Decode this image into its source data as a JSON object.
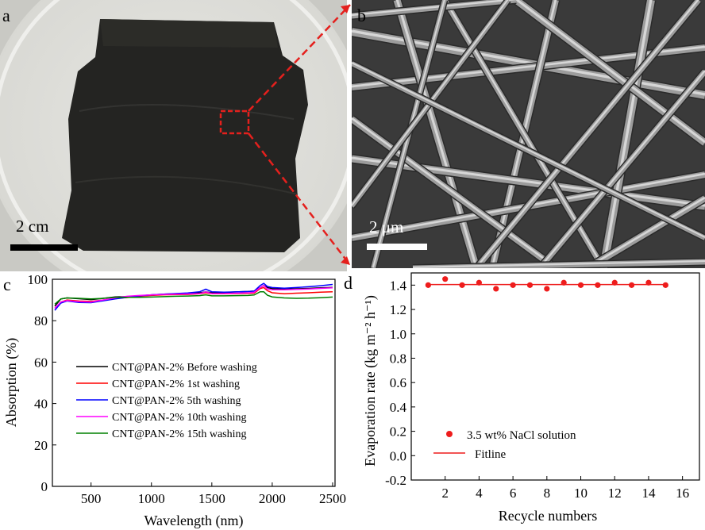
{
  "panels": {
    "a": {
      "label": "a",
      "scale_label": "2 cm"
    },
    "b": {
      "label": "b",
      "scale_label": "2 μm"
    },
    "c": {
      "label": "c"
    },
    "d": {
      "label": "d"
    }
  },
  "colors": {
    "zoom_box": "#e4201d",
    "before": "#000000",
    "first": "#ff0000",
    "fifth": "#0000ff",
    "tenth": "#ff00ff",
    "fifteenth": "#008000",
    "points": "#ee1c1c",
    "fitline": "#ee1c1c"
  },
  "chart_data": [
    {
      "type": "line",
      "panel": "c",
      "xlabel": "Wavelength (nm)",
      "ylabel": "Absorption (%)",
      "xlim": [
        180,
        2520
      ],
      "ylim": [
        0,
        100
      ],
      "xticks": [
        500,
        1000,
        1500,
        2000,
        2500
      ],
      "yticks": [
        0,
        20,
        40,
        60,
        80,
        100
      ],
      "legend_position": "center-left",
      "x": [
        200,
        250,
        300,
        400,
        500,
        600,
        700,
        800,
        900,
        1000,
        1100,
        1200,
        1300,
        1400,
        1450,
        1500,
        1600,
        1700,
        1800,
        1850,
        1900,
        1930,
        1960,
        2000,
        2100,
        2200,
        2300,
        2400,
        2500
      ],
      "series": [
        {
          "name": "CNT@PAN-2% Before washing",
          "color_key": "before",
          "values": [
            87,
            90.5,
            91,
            90.6,
            90.2,
            90.8,
            91.5,
            91.6,
            92,
            92.5,
            92.8,
            93,
            93.2,
            93.5,
            93.9,
            93.5,
            93.6,
            93.9,
            94.1,
            94.3,
            96,
            97,
            96,
            95.5,
            95.2,
            95.4,
            95.6,
            95.9,
            96.1
          ]
        },
        {
          "name": "CNT@PAN-2% 1st washing",
          "color_key": "first",
          "values": [
            86,
            89,
            90,
            89.5,
            89.3,
            90,
            90.8,
            91.2,
            91.8,
            92.2,
            92.5,
            92.6,
            92.7,
            93,
            93.5,
            93,
            93,
            93.1,
            93.2,
            93.3,
            95.5,
            96,
            94.5,
            93.5,
            93,
            93.3,
            93.5,
            93.8,
            94
          ]
        },
        {
          "name": "CNT@PAN-2% 5th washing",
          "color_key": "fifth",
          "values": [
            85,
            88.5,
            89.5,
            88.8,
            88.7,
            89.6,
            90.5,
            91.3,
            92,
            92.5,
            92.8,
            93.1,
            93.4,
            94,
            95.2,
            94,
            93.8,
            93.9,
            94.1,
            94.3,
            97,
            98,
            96.5,
            96,
            95.7,
            96,
            96.4,
            96.9,
            97.5
          ]
        },
        {
          "name": "CNT@PAN-2% 10th washing",
          "color_key": "tenth",
          "values": [
            86,
            89,
            89.7,
            89.2,
            89,
            90,
            91,
            91.8,
            92.2,
            92.5,
            92.7,
            92.8,
            92.9,
            93.1,
            93.9,
            93.1,
            93.1,
            93.3,
            93.5,
            93.7,
            96,
            97,
            95.3,
            95,
            94.9,
            95.1,
            95.3,
            95.6,
            95.9
          ]
        },
        {
          "name": "CNT@PAN-2% 15th washing",
          "color_key": "fifteenth",
          "values": [
            88,
            90.5,
            91,
            90.8,
            90.5,
            90.8,
            91.3,
            91.3,
            91.3,
            91.4,
            91.6,
            91.8,
            91.9,
            92.1,
            92.5,
            92,
            92,
            92.1,
            92.2,
            92.4,
            94,
            94,
            92.3,
            91.5,
            91,
            90.8,
            90.9,
            91.1,
            91.4
          ]
        }
      ]
    },
    {
      "type": "scatter",
      "panel": "d",
      "xlabel": "Recycle numbers",
      "ylabel": "Evaporation rate (kg m⁻² h⁻¹)",
      "xlim": [
        0,
        17
      ],
      "ylim": [
        -0.2,
        1.5
      ],
      "xticks": [
        2,
        4,
        6,
        8,
        10,
        12,
        14,
        16
      ],
      "yticks": [
        -0.2,
        0.0,
        0.2,
        0.4,
        0.6,
        0.8,
        1.0,
        1.2,
        1.4
      ],
      "legend_position": "bottom-left",
      "series": [
        {
          "name": "3.5 wt% NaCl solution",
          "x": [
            1,
            2,
            3,
            4,
            5,
            6,
            7,
            8,
            9,
            10,
            11,
            12,
            13,
            14,
            15
          ],
          "values": [
            1.4,
            1.45,
            1.4,
            1.42,
            1.37,
            1.4,
            1.4,
            1.37,
            1.42,
            1.4,
            1.4,
            1.42,
            1.4,
            1.42,
            1.4
          ]
        },
        {
          "name": "Fitline",
          "x": [
            1,
            15
          ],
          "values": [
            1.405,
            1.405
          ]
        }
      ]
    }
  ]
}
